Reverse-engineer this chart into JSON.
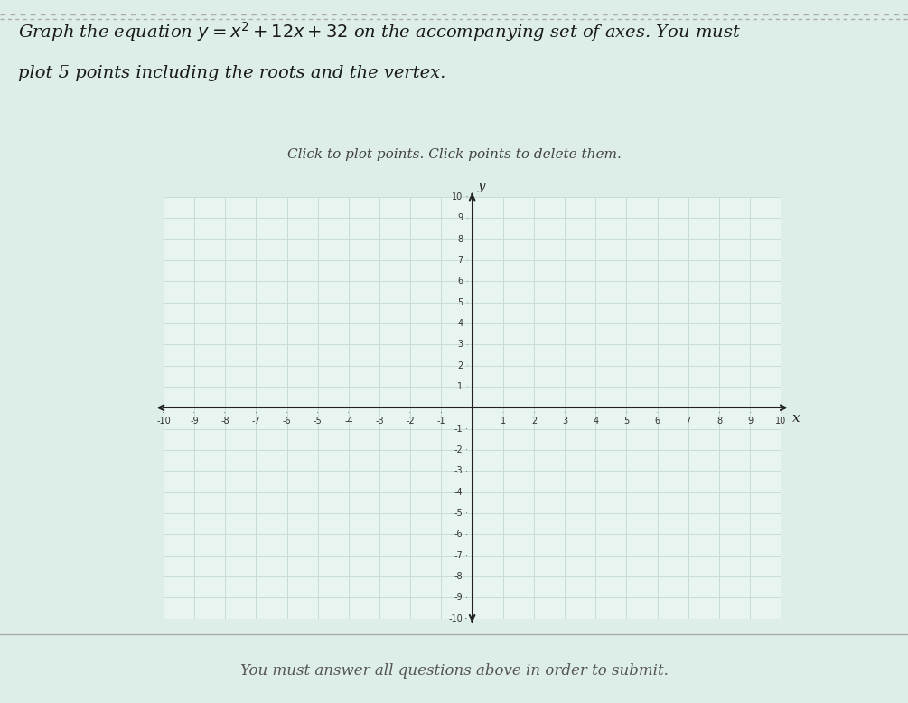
{
  "title_text": "Graph the equation $y = x^2 + 12x + 32$ on the accompanying set of axes. You must\nplot 5 points including the roots and the vertex.",
  "subtitle_text": "Click to plot points. Click points to delete them.",
  "footer_text": "You must answer all questions above in order to submit.",
  "xlim": [
    -10,
    10
  ],
  "ylim": [
    -10,
    10
  ],
  "xlabel": "x",
  "ylabel": "y",
  "background_color": "#e8f4f0",
  "grid_color": "#c8dcd8",
  "axis_color": "#222222",
  "tick_label_color": "#333333",
  "title_color": "#1a1a1a",
  "subtitle_color": "#444444",
  "footer_color": "#555555",
  "page_bg_color": "#ddeee8",
  "border_color": "#aaaaaa",
  "border_dash": [
    4,
    4
  ],
  "cursor_color": "#333333"
}
